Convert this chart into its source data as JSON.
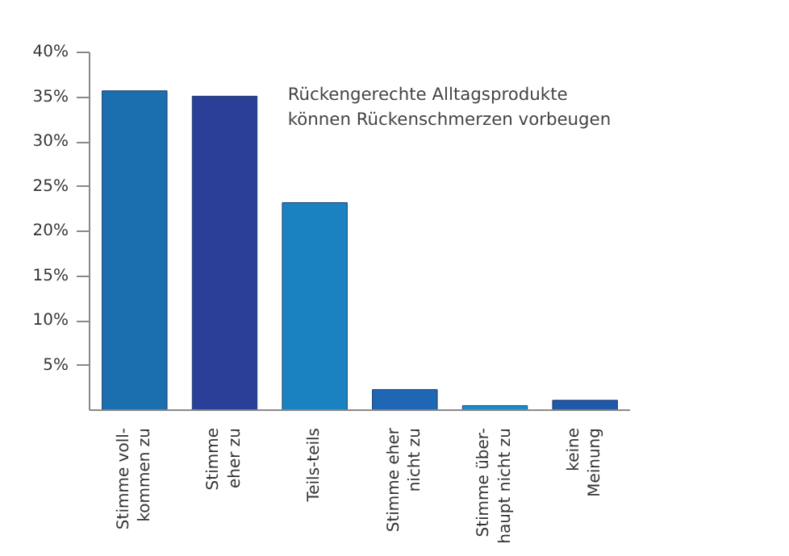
{
  "chart_data": {
    "type": "bar",
    "title": "Rückengerechte Alltagsprodukte\nkönnen Rückenschmerzen vorbeugen",
    "categories": [
      "Stimme voll-\nkommen zu",
      "Stimme\neher zu",
      "Teils-teils",
      "Stimme eher\nnicht zu",
      "Stimme über-\nhaupt nicht zu",
      "keine\nMeinung"
    ],
    "values": [
      35.7,
      35.1,
      23.2,
      2.3,
      0.5,
      1.1
    ],
    "colors": [
      "#1b6fae",
      "#2a3f98",
      "#1a82c0",
      "#1f66b4",
      "#1a8ccc",
      "#2058a8"
    ],
    "ylim": [
      0,
      40
    ],
    "yticks": [
      {
        "value": 5,
        "label": "5%"
      },
      {
        "value": 10,
        "label": "10%"
      },
      {
        "value": 15,
        "label": "15%"
      },
      {
        "value": 20,
        "label": "20%"
      },
      {
        "value": 25,
        "label": "25%"
      },
      {
        "value": 30,
        "label": "30%"
      },
      {
        "value": 35,
        "label": "35%"
      },
      {
        "value": 40,
        "label": "40%"
      }
    ],
    "grid": false
  }
}
